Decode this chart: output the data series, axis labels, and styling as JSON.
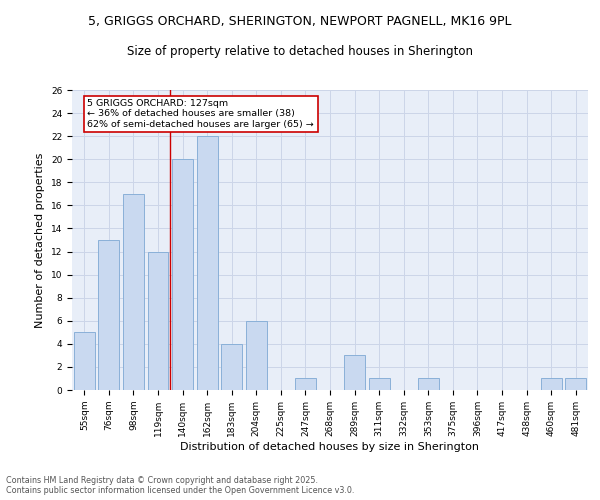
{
  "title_line1": "5, GRIGGS ORCHARD, SHERINGTON, NEWPORT PAGNELL, MK16 9PL",
  "title_line2": "Size of property relative to detached houses in Sherington",
  "xlabel": "Distribution of detached houses by size in Sherington",
  "ylabel": "Number of detached properties",
  "categories": [
    "55sqm",
    "76sqm",
    "98sqm",
    "119sqm",
    "140sqm",
    "162sqm",
    "183sqm",
    "204sqm",
    "225sqm",
    "247sqm",
    "268sqm",
    "289sqm",
    "311sqm",
    "332sqm",
    "353sqm",
    "375sqm",
    "396sqm",
    "417sqm",
    "438sqm",
    "460sqm",
    "481sqm"
  ],
  "values": [
    5,
    13,
    17,
    12,
    20,
    22,
    4,
    6,
    0,
    1,
    0,
    3,
    1,
    0,
    1,
    0,
    0,
    0,
    0,
    1,
    1
  ],
  "bar_color": "#c9d9f0",
  "bar_edge_color": "#8ab0d8",
  "grid_color": "#ccd5e8",
  "background_color": "#e8eef8",
  "vline_x": 3.5,
  "vline_color": "#cc0000",
  "annotation_text": "5 GRIGGS ORCHARD: 127sqm\n← 36% of detached houses are smaller (38)\n62% of semi-detached houses are larger (65) →",
  "annotation_box_color": "#cc0000",
  "ylim": [
    0,
    26
  ],
  "yticks": [
    0,
    2,
    4,
    6,
    8,
    10,
    12,
    14,
    16,
    18,
    20,
    22,
    24,
    26
  ],
  "footer_line1": "Contains HM Land Registry data © Crown copyright and database right 2025.",
  "footer_line2": "Contains public sector information licensed under the Open Government Licence v3.0.",
  "title_fontsize": 9,
  "subtitle_fontsize": 8.5,
  "tick_fontsize": 6.5,
  "ylabel_fontsize": 8,
  "xlabel_fontsize": 8,
  "ann_fontsize": 6.8,
  "footer_fontsize": 5.8
}
